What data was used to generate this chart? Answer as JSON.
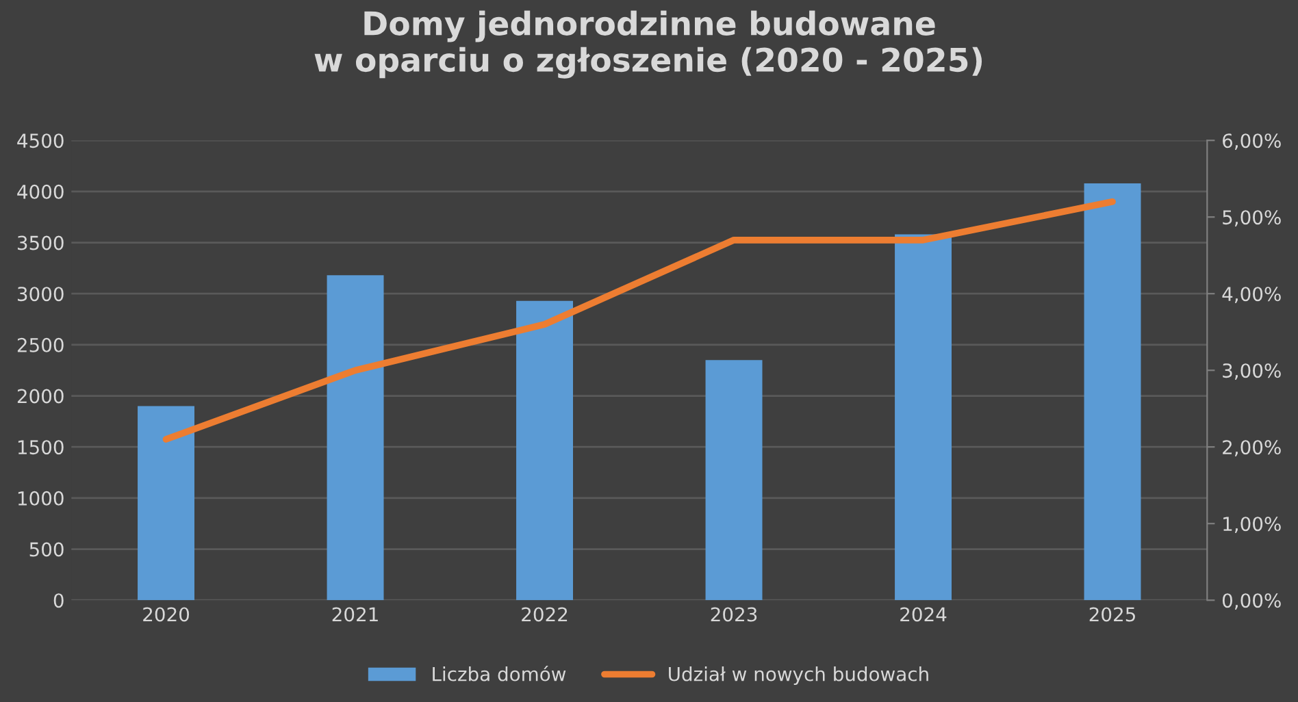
{
  "chart_data": {
    "type": "bar",
    "title": "Domy jednorodzinne budowane\nw oparciu o zgłoszenie (2020 - 2025)",
    "categories": [
      "2020",
      "2021",
      "2022",
      "2023",
      "2024",
      "2025"
    ],
    "series": [
      {
        "name": "Liczba domów",
        "color": "#5b9bd5",
        "values": [
          1900,
          3180,
          2930,
          2350,
          3580,
          4080
        ]
      },
      {
        "name": "Udział w nowych budowach",
        "type": "line",
        "axis": "y2",
        "color": "#ed7d31",
        "values": [
          2.1,
          3.0,
          3.6,
          4.7,
          4.7,
          5.2
        ]
      }
    ],
    "ylim": [
      0,
      4500
    ],
    "yticks": [
      0,
      500,
      1000,
      1500,
      2000,
      2500,
      3000,
      3500,
      4000,
      4500
    ],
    "y2lim": [
      0,
      6
    ],
    "y2ticks": [
      {
        "value": 0,
        "label": "0,00%"
      },
      {
        "value": 1,
        "label": "1,00%"
      },
      {
        "value": 2,
        "label": "2,00%"
      },
      {
        "value": 3,
        "label": "3,00%"
      },
      {
        "value": 4,
        "label": "4,00%"
      },
      {
        "value": 5,
        "label": "5,00%"
      },
      {
        "value": 6,
        "label": "6,00%"
      }
    ],
    "grid": "y",
    "legend": "bottom",
    "marker": "none",
    "line_style": "solid"
  }
}
